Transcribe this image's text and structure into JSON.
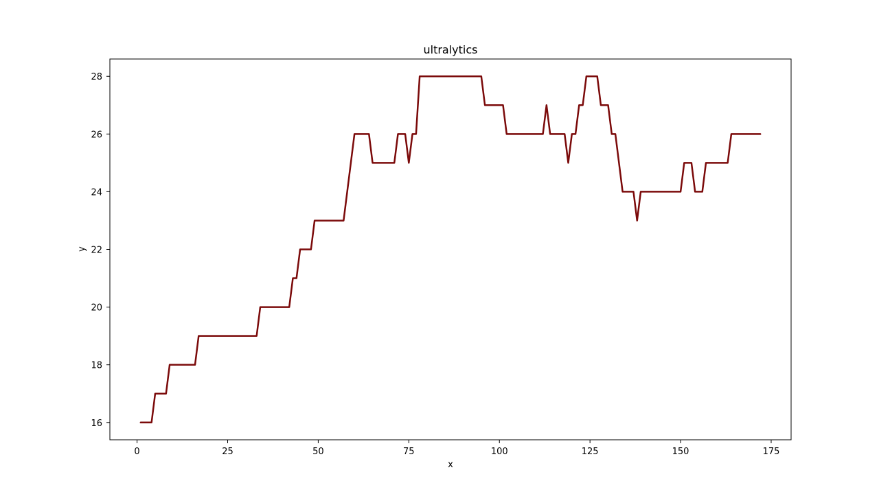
{
  "chart_data": {
    "type": "line",
    "title": "ultralytics",
    "xlabel": "x",
    "ylabel": "y",
    "xlim": [
      -7.5,
      180.5
    ],
    "ylim": [
      15.4,
      28.6
    ],
    "xticks": [
      0,
      25,
      50,
      75,
      100,
      125,
      150,
      175
    ],
    "yticks": [
      16,
      18,
      20,
      22,
      24,
      26,
      28
    ],
    "grid": false,
    "line_color": "#7b0a0a",
    "series": [
      {
        "x": [
          1,
          4,
          5,
          8,
          9,
          16,
          17,
          33,
          34,
          42,
          43,
          44,
          45,
          48,
          49,
          57,
          60,
          64,
          65,
          71,
          72,
          74,
          75,
          76,
          77,
          78,
          95,
          96,
          101,
          102,
          112,
          113,
          114,
          118,
          119,
          120,
          121,
          122,
          123,
          124,
          127,
          128,
          130,
          131,
          132,
          134,
          137,
          138,
          139,
          150,
          151,
          153,
          154,
          156,
          157,
          163,
          164,
          172
        ],
        "y": [
          16,
          16,
          17,
          17,
          18,
          18,
          19,
          19,
          20,
          20,
          21,
          21,
          22,
          22,
          23,
          23,
          26,
          26,
          25,
          25,
          26,
          26,
          25,
          26,
          26,
          28,
          28,
          27,
          27,
          26,
          26,
          27,
          26,
          26,
          25,
          26,
          26,
          27,
          27,
          28,
          28,
          27,
          27,
          26,
          26,
          24,
          24,
          23,
          24,
          24,
          25,
          25,
          24,
          24,
          25,
          25,
          26,
          26
        ]
      }
    ]
  }
}
